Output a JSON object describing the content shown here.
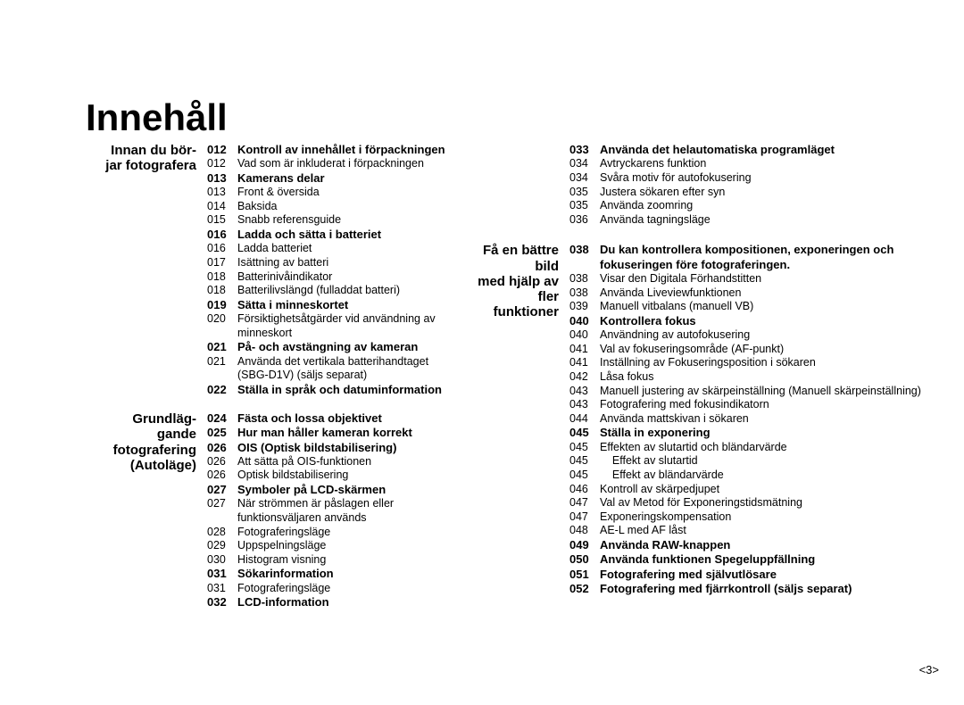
{
  "title": "Innehåll",
  "page_number": "<3>",
  "columns": [
    {
      "sections": [
        {
          "label": "Innan du bör-\njar fotografera",
          "entries": [
            {
              "type": "heading",
              "page": "012",
              "text": "Kontroll av innehållet i förpackningen"
            },
            {
              "type": "sub",
              "page": "012",
              "text": "Vad som är inkluderat i förpackningen"
            },
            {
              "type": "heading",
              "page": "013",
              "text": "Kamerans delar"
            },
            {
              "type": "sub",
              "page": "013",
              "text": "Front & översida"
            },
            {
              "type": "sub",
              "page": "014",
              "text": "Baksida"
            },
            {
              "type": "sub",
              "page": "015",
              "text": "Snabb referensguide"
            },
            {
              "type": "heading",
              "page": "016",
              "text": "Ladda och sätta i batteriet"
            },
            {
              "type": "sub",
              "page": "016",
              "text": "Ladda batteriet"
            },
            {
              "type": "sub",
              "page": "017",
              "text": "Isättning av batteri"
            },
            {
              "type": "sub",
              "page": "018",
              "text": "Batterinivåindikator"
            },
            {
              "type": "sub",
              "page": "018",
              "text": "Batterilivslängd (fulladdat batteri)"
            },
            {
              "type": "heading",
              "page": "019",
              "text": "Sätta i minneskortet"
            },
            {
              "type": "sub",
              "page": "020",
              "text": "Försiktighetsåtgärder vid användning av minneskort"
            },
            {
              "type": "heading",
              "page": "021",
              "text": "På- och avstängning av kameran"
            },
            {
              "type": "sub",
              "page": "021",
              "text": "Använda det vertikala batterihandtaget (SBG-D1V) (säljs separat)"
            },
            {
              "type": "heading",
              "page": "022",
              "text": "Ställa in språk och datuminformation"
            }
          ]
        },
        {
          "label": "Grundläg-\ngande\nfotografering\n(Autoläge)",
          "gap": 14,
          "entries": [
            {
              "type": "heading",
              "page": "024",
              "text": "Fästa och lossa objektivet"
            },
            {
              "type": "heading",
              "page": "025",
              "text": "Hur man håller kameran korrekt"
            },
            {
              "type": "heading",
              "page": "026",
              "text": "OIS (Optisk bildstabilisering)"
            },
            {
              "type": "sub",
              "page": "026",
              "text": "Att sätta på OIS-funktionen"
            },
            {
              "type": "sub",
              "page": "026",
              "text": "Optisk bildstabilisering"
            },
            {
              "type": "heading",
              "page": "027",
              "text": "Symboler på LCD-skärmen"
            },
            {
              "type": "sub",
              "page": "027",
              "text": "När strömmen är påslagen eller funktionsväljaren används"
            },
            {
              "type": "sub",
              "page": "028",
              "text": "Fotograferingsläge"
            },
            {
              "type": "sub",
              "page": "029",
              "text": "Uppspelningsläge"
            },
            {
              "type": "sub",
              "page": "030",
              "text": "Histogram visning"
            },
            {
              "type": "heading",
              "page": "031",
              "text": "Sökarinformation"
            },
            {
              "type": "sub",
              "page": "031",
              "text": "Fotograferingsläge"
            },
            {
              "type": "heading",
              "page": "032",
              "text": "LCD-information"
            }
          ]
        }
      ]
    },
    {
      "sections": [
        {
          "label": "",
          "entries": [
            {
              "type": "heading",
              "page": "033",
              "text": "Använda det helautomatiska programläget"
            },
            {
              "type": "sub",
              "page": "034",
              "text": "Avtryckarens funktion"
            },
            {
              "type": "sub",
              "page": "034",
              "text": "Svåra motiv för autofokusering"
            },
            {
              "type": "sub",
              "page": "035",
              "text": "Justera sökaren efter syn"
            },
            {
              "type": "sub",
              "page": "035",
              "text": "Använda zoomring"
            },
            {
              "type": "sub",
              "page": "036",
              "text": "Använda tagningsläge"
            }
          ]
        },
        {
          "label": "Få en bättre bild\nmed hjälp av\nfler\nfunktioner",
          "gap": 16,
          "entries": [
            {
              "type": "heading",
              "page": "038",
              "text": "Du kan kontrollera kompositionen, exponeringen och fokuseringen före fotograferingen."
            },
            {
              "type": "sub",
              "page": "038",
              "text": "Visar den Digitala Förhandstitten"
            },
            {
              "type": "sub",
              "page": "038",
              "text": "Använda Liveviewfunktionen"
            },
            {
              "type": "sub",
              "page": "039",
              "text": "Manuell vitbalans (manuell VB)"
            },
            {
              "type": "heading",
              "page": "040",
              "text": "Kontrollera fokus"
            },
            {
              "type": "sub",
              "page": "040",
              "text": "Användning av autofokusering"
            },
            {
              "type": "sub",
              "page": "041",
              "text": "Val av fokuseringsområde (AF-punkt)"
            },
            {
              "type": "sub",
              "page": "041",
              "text": "Inställning av Fokuseringsposition i sökaren"
            },
            {
              "type": "sub",
              "page": "042",
              "text": "Låsa fokus"
            },
            {
              "type": "sub",
              "page": "043",
              "text": "Manuell justering av skärpeinställning (Manuell skärpeinställning)"
            },
            {
              "type": "sub",
              "page": "043",
              "text": "Fotografering med fokusindikatorn"
            },
            {
              "type": "sub",
              "page": "044",
              "text": "Använda mattskivan i sökaren"
            },
            {
              "type": "heading",
              "page": "045",
              "text": "Ställa in exponering"
            },
            {
              "type": "sub",
              "page": "045",
              "text": "Effekten av slutartid och bländarvärde"
            },
            {
              "type": "sub",
              "page": "045",
              "text": "    Effekt av slutartid"
            },
            {
              "type": "sub",
              "page": "045",
              "text": "    Effekt av bländarvärde"
            },
            {
              "type": "sub",
              "page": "046",
              "text": "Kontroll av skärpedjupet"
            },
            {
              "type": "sub",
              "page": "047",
              "text": "Val av Metod för Exponeringstidsmätning"
            },
            {
              "type": "sub",
              "page": "047",
              "text": "Exponeringskompensation"
            },
            {
              "type": "sub",
              "page": "048",
              "text": "AE-L med AF låst"
            },
            {
              "type": "heading",
              "page": "049",
              "text": "Använda RAW-knappen"
            },
            {
              "type": "heading",
              "page": "050",
              "text": "Använda funktionen Spegeluppfällning"
            },
            {
              "type": "heading",
              "page": "051",
              "text": "Fotografering med självutlösare"
            },
            {
              "type": "heading",
              "page": "052",
              "text": "Fotografering med fjärrkontroll (säljs separat)"
            }
          ]
        }
      ]
    }
  ]
}
